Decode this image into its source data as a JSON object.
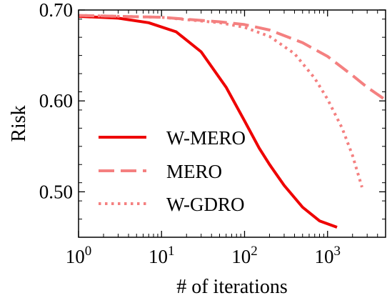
{
  "chart_data": {
    "type": "line",
    "xscale": "log",
    "xlim": [
      1,
      5000
    ],
    "ylim": [
      0.45,
      0.7
    ],
    "xlabel": "# of iterations",
    "ylabel": "Risk",
    "x_ticks": [
      {
        "base": "10",
        "exp": "0",
        "value": 1
      },
      {
        "base": "10",
        "exp": "1",
        "value": 10
      },
      {
        "base": "10",
        "exp": "2",
        "value": 100
      },
      {
        "base": "10",
        "exp": "3",
        "value": 1000
      }
    ],
    "y_ticks": [
      {
        "label": "0.50",
        "value": 0.5
      },
      {
        "label": "0.60",
        "value": 0.6
      },
      {
        "label": "0.70",
        "value": 0.7
      }
    ],
    "legend": "center-left",
    "grid": false,
    "series": [
      {
        "name": "W-MERO",
        "color": "#ee0000",
        "style": "solid",
        "x": [
          1,
          3,
          7,
          15,
          30,
          60,
          100,
          150,
          200,
          300,
          500,
          800,
          1300
        ],
        "y": [
          0.693,
          0.691,
          0.686,
          0.676,
          0.654,
          0.615,
          0.578,
          0.548,
          0.53,
          0.507,
          0.483,
          0.468,
          0.461
        ]
      },
      {
        "name": "MERO",
        "color": "#f48080",
        "style": "dashed",
        "x": [
          1,
          10,
          50,
          100,
          200,
          500,
          1000,
          2000,
          3000,
          5000
        ],
        "y": [
          0.694,
          0.692,
          0.687,
          0.684,
          0.678,
          0.664,
          0.649,
          0.628,
          0.615,
          0.601
        ]
      },
      {
        "name": "W-GDRO",
        "color": "#f48080",
        "style": "dotted",
        "x": [
          1,
          10,
          50,
          100,
          200,
          400,
          700,
          1000,
          1500,
          2000,
          2600
        ],
        "y": [
          0.694,
          0.692,
          0.686,
          0.681,
          0.671,
          0.652,
          0.625,
          0.602,
          0.57,
          0.54,
          0.505
        ]
      }
    ]
  }
}
